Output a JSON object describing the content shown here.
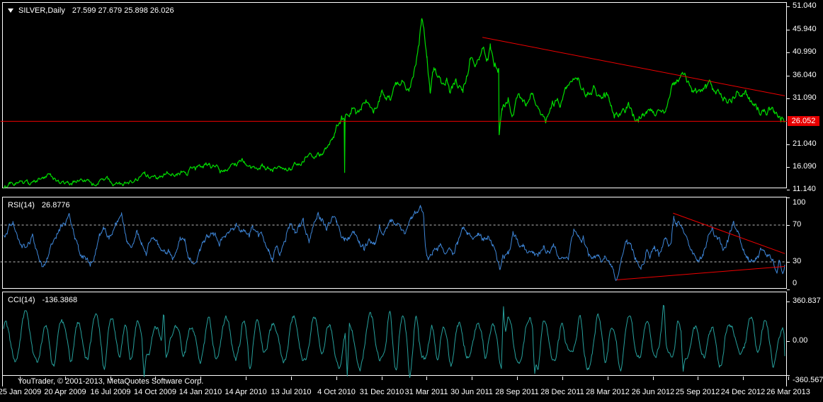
{
  "window": {
    "symbol": "SILVER,Daily",
    "ohlc": "27.599 27.679 25.898 26.026"
  },
  "footer": {
    "copyright": "YouTrader, © 2001-2013, MetaQuotes Software Corp."
  },
  "colors": {
    "background": "#000000",
    "border": "#ffffff",
    "axis_text": "#ffffff",
    "price_line": "#00dd00",
    "rsi_line": "#3e86d8",
    "cci_line": "#26a09c",
    "trend_red": "#ee0000",
    "level_dash": "#bbbbbb",
    "price_tag_bg": "#e80000"
  },
  "main_panel": {
    "y_ticks": [
      {
        "label": "51.040",
        "value": 51.04
      },
      {
        "label": "45.940",
        "value": 45.94
      },
      {
        "label": "40.990",
        "value": 40.99
      },
      {
        "label": "36.040",
        "value": 36.04
      },
      {
        "label": "31.090",
        "value": 31.09
      },
      {
        "label": "21.040",
        "value": 21.04
      },
      {
        "label": "16.090",
        "value": 16.09
      },
      {
        "label": "11.140",
        "value": 11.14
      }
    ],
    "current_price": {
      "label": "26.052",
      "value": 26.052
    },
    "hline_value": 26.052,
    "trendline": {
      "t1": 0.613,
      "v1": 44.3,
      "t2": 1.0,
      "v2": 31.6
    }
  },
  "rsi_panel": {
    "label": "RSI(14)",
    "value": "26.8776",
    "y_ticks": [
      {
        "label": "100",
        "value": 100
      },
      {
        "label": "70",
        "value": 70
      },
      {
        "label": "30",
        "value": 30
      },
      {
        "label": "0",
        "value": 0
      }
    ],
    "dashed_levels": [
      70,
      30
    ],
    "trendlines": [
      {
        "t1": 0.857,
        "v1": 83,
        "t2": 1.0,
        "v2": 39
      },
      {
        "t1": 0.785,
        "v1": 10.5,
        "t2": 1.0,
        "v2": 25
      }
    ]
  },
  "cci_panel": {
    "label": "CCI(14)",
    "value": "-136.3868",
    "y_ticks": [
      {
        "label": "360.837",
        "value": 360.837
      },
      {
        "label": "0.00",
        "value": 0
      },
      {
        "label": "-360.567",
        "value": -360.567
      }
    ]
  },
  "x_axis": {
    "labels": [
      "25 Jan 2009",
      "20 Apr 2009",
      "16 Jul 2009",
      "14 Oct 2009",
      "14 Jan 2010",
      "14 Apr 2010",
      "13 Jul 2010",
      "4 Oct 2010",
      "31 Dec 2010",
      "31 Mar 2011",
      "30 Jun 2011",
      "28 Sep 2011",
      "28 Dec 2011",
      "28 Mar 2012",
      "26 Jun 2012",
      "25 Sep 2012",
      "24 Dec 2012",
      "26 Mar 2013"
    ]
  },
  "chart_data": [
    {
      "type": "line",
      "name": "SILVER Daily close",
      "panel": "main",
      "x_range": [
        "25 Jan 2009",
        "26 Mar 2013"
      ],
      "ylim": [
        11.14,
        51.04
      ],
      "last_value": 26.026,
      "noise": {
        "rough": 1.3,
        "decay": 0.85,
        "seed": 7,
        "min": 10.6,
        "max": 50.9
      },
      "anchors": [
        [
          0,
          11.5
        ],
        [
          0.008,
          12.4
        ],
        [
          0.016,
          13.3
        ],
        [
          0.032,
          12.4
        ],
        [
          0.045,
          13.1
        ],
        [
          0.059,
          14.3
        ],
        [
          0.072,
          13.0
        ],
        [
          0.082,
          12.3
        ],
        [
          0.1,
          13.3
        ],
        [
          0.113,
          12.7
        ],
        [
          0.127,
          13.5
        ],
        [
          0.14,
          12.4
        ],
        [
          0.154,
          12.0
        ],
        [
          0.168,
          12.7
        ],
        [
          0.181,
          13.9
        ],
        [
          0.195,
          13.3
        ],
        [
          0.209,
          14.6
        ],
        [
          0.222,
          14.1
        ],
        [
          0.233,
          15.3
        ],
        [
          0.245,
          16.0
        ],
        [
          0.263,
          16.4
        ],
        [
          0.277,
          15.2
        ],
        [
          0.29,
          16.0
        ],
        [
          0.304,
          17.4
        ],
        [
          0.317,
          16.2
        ],
        [
          0.331,
          17.0
        ],
        [
          0.345,
          15.8
        ],
        [
          0.354,
          15.2
        ],
        [
          0.367,
          16.1
        ],
        [
          0.385,
          17.6
        ],
        [
          0.403,
          19.0
        ],
        [
          0.417,
          20.3
        ],
        [
          0.428,
          25.2
        ],
        [
          0.4325,
          26.1
        ],
        [
          0.436,
          25.5
        ],
        [
          0.4366,
          14.2
        ],
        [
          0.4372,
          25.9
        ],
        [
          0.44,
          27.5
        ],
        [
          0.446,
          29.0
        ],
        [
          0.4515,
          26.9
        ],
        [
          0.458,
          28.0
        ],
        [
          0.464,
          29.5
        ],
        [
          0.473,
          28.9
        ],
        [
          0.485,
          33.0
        ],
        [
          0.494,
          31.5
        ],
        [
          0.503,
          33.8
        ],
        [
          0.51,
          35.6
        ],
        [
          0.519,
          34.1
        ],
        [
          0.528,
          39.2
        ],
        [
          0.532,
          44.0
        ],
        [
          0.535,
          48.8
        ],
        [
          0.538,
          46.4
        ],
        [
          0.54,
          42.0
        ],
        [
          0.542,
          38.3
        ],
        [
          0.546,
          31.9
        ],
        [
          0.549,
          35.6
        ],
        [
          0.551,
          37.1
        ],
        [
          0.56,
          34.1
        ],
        [
          0.567,
          36.2
        ],
        [
          0.571,
          33.0
        ],
        [
          0.578,
          34.6
        ],
        [
          0.588,
          32.5
        ],
        [
          0.597,
          39.2
        ],
        [
          0.603,
          37.7
        ],
        [
          0.609,
          40.3
        ],
        [
          0.613,
          42.9
        ],
        [
          0.618,
          41.3
        ],
        [
          0.623,
          42.3
        ],
        [
          0.628,
          39.5
        ],
        [
          0.6338,
          38.5
        ],
        [
          0.6344,
          24.4
        ],
        [
          0.638,
          28.6
        ],
        [
          0.646,
          30.9
        ],
        [
          0.651,
          27.9
        ],
        [
          0.66,
          32.0
        ],
        [
          0.669,
          29.5
        ],
        [
          0.676,
          32.4
        ],
        [
          0.685,
          28.9
        ],
        [
          0.694,
          25.9
        ],
        [
          0.703,
          29.3
        ],
        [
          0.712,
          30.4
        ],
        [
          0.721,
          32.9
        ],
        [
          0.734,
          37.2
        ],
        [
          0.742,
          33.7
        ],
        [
          0.748,
          32.9
        ],
        [
          0.755,
          33.7
        ],
        [
          0.763,
          31.4
        ],
        [
          0.769,
          32.0
        ],
        [
          0.775,
          30.9
        ],
        [
          0.782,
          27.3
        ],
        [
          0.789,
          28.3
        ],
        [
          0.796,
          28.1
        ],
        [
          0.8,
          29.7
        ],
        [
          0.805,
          27.3
        ],
        [
          0.813,
          26.5
        ],
        [
          0.818,
          27.8
        ],
        [
          0.823,
          27.0
        ],
        [
          0.832,
          27.8
        ],
        [
          0.84,
          27.5
        ],
        [
          0.845,
          28.1
        ],
        [
          0.85,
          29.8
        ],
        [
          0.857,
          33.7
        ],
        [
          0.863,
          34.8
        ],
        [
          0.872,
          35.1
        ],
        [
          0.881,
          32.7
        ],
        [
          0.887,
          32.4
        ],
        [
          0.893,
          31.6
        ],
        [
          0.899,
          32.4
        ],
        [
          0.907,
          33.7
        ],
        [
          0.914,
          33.2
        ],
        [
          0.92,
          30.6
        ],
        [
          0.927,
          29.8
        ],
        [
          0.932,
          30.1
        ],
        [
          0.938,
          32.1
        ],
        [
          0.945,
          31.6
        ],
        [
          0.95,
          31.4
        ],
        [
          0.957,
          29.8
        ],
        [
          0.963,
          28.9
        ],
        [
          0.967,
          28.6
        ],
        [
          0.973,
          28.3
        ],
        [
          0.979,
          28.3
        ],
        [
          0.986,
          27.8
        ],
        [
          0.991,
          27.0
        ],
        [
          0.995,
          26.1
        ],
        [
          0.998,
          26.7
        ],
        [
          1,
          26.03
        ]
      ]
    },
    {
      "type": "line",
      "name": "RSI(14)",
      "panel": "rsi",
      "ylim": [
        0,
        100
      ],
      "last_value": 26.8776,
      "noise": {
        "rough": 6,
        "decay": 0.82,
        "seed": 11,
        "min": 4,
        "max": 96
      },
      "anchors": [
        [
          0,
          60
        ],
        [
          0.012,
          74
        ],
        [
          0.02,
          49
        ],
        [
          0.03,
          42
        ],
        [
          0.037,
          56
        ],
        [
          0.049,
          30
        ],
        [
          0.055,
          34
        ],
        [
          0.07,
          65
        ],
        [
          0.084,
          77
        ],
        [
          0.091,
          58
        ],
        [
          0.096,
          41
        ],
        [
          0.102,
          37
        ],
        [
          0.111,
          25
        ],
        [
          0.117,
          37
        ],
        [
          0.123,
          58
        ],
        [
          0.128,
          62
        ],
        [
          0.135,
          52
        ],
        [
          0.143,
          74
        ],
        [
          0.151,
          77
        ],
        [
          0.158,
          51
        ],
        [
          0.164,
          48
        ],
        [
          0.17,
          65
        ],
        [
          0.177,
          53
        ],
        [
          0.183,
          34
        ],
        [
          0.19,
          58
        ],
        [
          0.196,
          56
        ],
        [
          0.204,
          37
        ],
        [
          0.211,
          42
        ],
        [
          0.216,
          38
        ],
        [
          0.226,
          58
        ],
        [
          0.232,
          56
        ],
        [
          0.238,
          34
        ],
        [
          0.243,
          26
        ],
        [
          0.251,
          42
        ],
        [
          0.261,
          56
        ],
        [
          0.269,
          58
        ],
        [
          0.277,
          52
        ],
        [
          0.284,
          62
        ],
        [
          0.29,
          63
        ],
        [
          0.298,
          67
        ],
        [
          0.303,
          60
        ],
        [
          0.308,
          63
        ],
        [
          0.315,
          55
        ],
        [
          0.319,
          65
        ],
        [
          0.326,
          58
        ],
        [
          0.332,
          60
        ],
        [
          0.339,
          42
        ],
        [
          0.344,
          32
        ],
        [
          0.348,
          45
        ],
        [
          0.354,
          41
        ],
        [
          0.362,
          58
        ],
        [
          0.366,
          65
        ],
        [
          0.373,
          60
        ],
        [
          0.379,
          70
        ],
        [
          0.384,
          71
        ],
        [
          0.391,
          56
        ],
        [
          0.397,
          74
        ],
        [
          0.402,
          86
        ],
        [
          0.407,
          78
        ],
        [
          0.413,
          67
        ],
        [
          0.42,
          79
        ],
        [
          0.426,
          74
        ],
        [
          0.431,
          62
        ],
        [
          0.436,
          53
        ],
        [
          0.442,
          58
        ],
        [
          0.449,
          62
        ],
        [
          0.455,
          48
        ],
        [
          0.461,
          45
        ],
        [
          0.468,
          53
        ],
        [
          0.475,
          49
        ],
        [
          0.481,
          70
        ],
        [
          0.488,
          65
        ],
        [
          0.496,
          74
        ],
        [
          0.503,
          72
        ],
        [
          0.513,
          65
        ],
        [
          0.522,
          79
        ],
        [
          0.534,
          89
        ],
        [
          0.538,
          75
        ],
        [
          0.54,
          49
        ],
        [
          0.544,
          34
        ],
        [
          0.549,
          37
        ],
        [
          0.555,
          44
        ],
        [
          0.561,
          48
        ],
        [
          0.568,
          42
        ],
        [
          0.575,
          35
        ],
        [
          0.581,
          51
        ],
        [
          0.588,
          67
        ],
        [
          0.594,
          62
        ],
        [
          0.6,
          58
        ],
        [
          0.607,
          62
        ],
        [
          0.613,
          56
        ],
        [
          0.62,
          58
        ],
        [
          0.626,
          48
        ],
        [
          0.633,
          30
        ],
        [
          0.6348,
          19
        ],
        [
          0.639,
          32
        ],
        [
          0.646,
          37
        ],
        [
          0.652,
          58
        ],
        [
          0.658,
          51
        ],
        [
          0.665,
          52
        ],
        [
          0.672,
          37
        ],
        [
          0.678,
          39
        ],
        [
          0.684,
          35
        ],
        [
          0.691,
          42
        ],
        [
          0.697,
          41
        ],
        [
          0.704,
          45
        ],
        [
          0.711,
          39
        ],
        [
          0.717,
          37
        ],
        [
          0.723,
          41
        ],
        [
          0.73,
          67
        ],
        [
          0.736,
          63
        ],
        [
          0.742,
          56
        ],
        [
          0.749,
          38
        ],
        [
          0.756,
          35
        ],
        [
          0.762,
          32
        ],
        [
          0.769,
          35
        ],
        [
          0.775,
          31
        ],
        [
          0.781,
          20
        ],
        [
          0.785,
          11
        ],
        [
          0.791,
          37
        ],
        [
          0.798,
          48
        ],
        [
          0.804,
          45
        ],
        [
          0.81,
          34
        ],
        [
          0.816,
          31
        ],
        [
          0.822,
          41
        ],
        [
          0.827,
          37
        ],
        [
          0.833,
          46
        ],
        [
          0.839,
          37
        ],
        [
          0.847,
          52
        ],
        [
          0.851,
          48
        ],
        [
          0.855,
          60
        ],
        [
          0.858,
          84
        ],
        [
          0.862,
          72
        ],
        [
          0.869,
          63
        ],
        [
          0.876,
          48
        ],
        [
          0.882,
          38
        ],
        [
          0.888,
          34
        ],
        [
          0.895,
          37
        ],
        [
          0.901,
          56
        ],
        [
          0.907,
          66
        ],
        [
          0.914,
          51
        ],
        [
          0.921,
          45
        ],
        [
          0.927,
          56
        ],
        [
          0.934,
          74
        ],
        [
          0.94,
          63
        ],
        [
          0.947,
          45
        ],
        [
          0.953,
          37
        ],
        [
          0.96,
          32
        ],
        [
          0.966,
          37
        ],
        [
          0.973,
          45
        ],
        [
          0.979,
          41
        ],
        [
          0.985,
          35
        ],
        [
          0.99,
          18
        ],
        [
          0.994,
          30
        ],
        [
          0.997,
          24
        ],
        [
          1,
          26.9
        ]
      ]
    },
    {
      "type": "line",
      "name": "CCI(14)",
      "panel": "cci",
      "ylim": [
        -360.567,
        360.837
      ],
      "last_value": -136.3868,
      "gen": {
        "period": [
          16,
          32
        ],
        "amp": [
          115,
          255
        ],
        "noise": 45,
        "decay": 0.75,
        "clamp": [
          -338,
          352
        ],
        "seed": 23,
        "last": -136.39,
        "spikes": [
          [
            0.18,
            -325
          ],
          [
            0.205,
            300
          ],
          [
            0.44,
            -318
          ],
          [
            0.52,
            -332
          ],
          [
            0.64,
            315
          ],
          [
            0.68,
            -295
          ],
          [
            0.845,
            365
          ],
          [
            0.87,
            -275
          ],
          [
            0.985,
            -255
          ]
        ]
      }
    }
  ]
}
